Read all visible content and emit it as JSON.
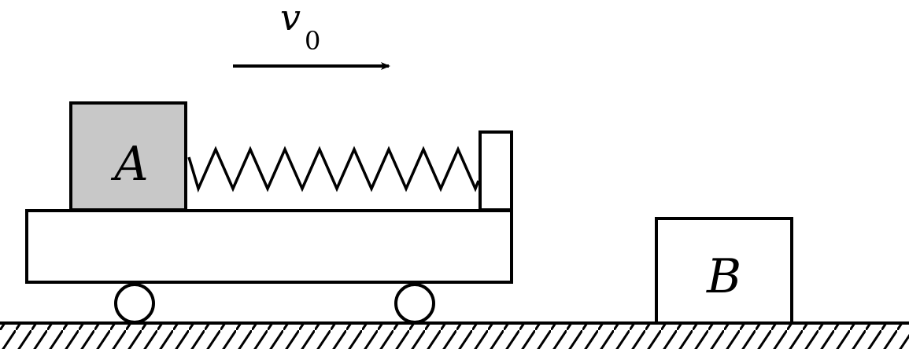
{
  "diagram": {
    "velocity_label": "v",
    "velocity_subscript": "0",
    "block_a_label": "A",
    "block_b_label": "B"
  },
  "colors": {
    "block_a_fill": "#c8c8c8",
    "stroke": "#000000",
    "background": "#ffffff"
  }
}
